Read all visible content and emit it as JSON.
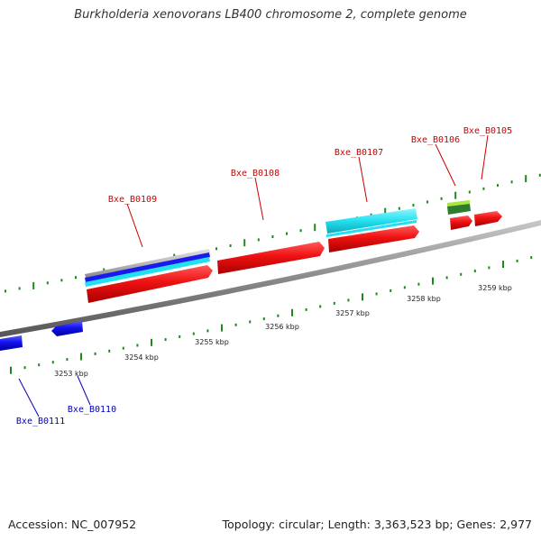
{
  "title": "Burkholderia xenovorans LB400 chromosome 2, complete genome",
  "footer": {
    "accession": "Accession: NC_007952",
    "summary": "Topology: circular; Length: 3,363,523 bp; Genes: 2,977"
  },
  "colors": {
    "forward_gene": "#ee1111",
    "reverse_gene": "#1111ee",
    "forward_label": "#cc0000",
    "reverse_label": "#0000bb",
    "cyan_feature": "#22e0f0",
    "tick": "#1a8a1a",
    "backbone": "#8a8a8a"
  },
  "scale_labels": [
    "3253 kbp",
    "3254 kbp",
    "3255 kbp",
    "3256 kbp",
    "3257 kbp",
    "3258 kbp",
    "3259 kbp"
  ],
  "genes": [
    {
      "id": "Bxe_B0105",
      "strand": "forward"
    },
    {
      "id": "Bxe_B0106",
      "strand": "forward"
    },
    {
      "id": "Bxe_B0107",
      "strand": "forward"
    },
    {
      "id": "Bxe_B0108",
      "strand": "forward"
    },
    {
      "id": "Bxe_B0109",
      "strand": "forward"
    },
    {
      "id": "Bxe_B0110",
      "strand": "reverse"
    },
    {
      "id": "Bxe_B0111",
      "strand": "reverse"
    }
  ]
}
